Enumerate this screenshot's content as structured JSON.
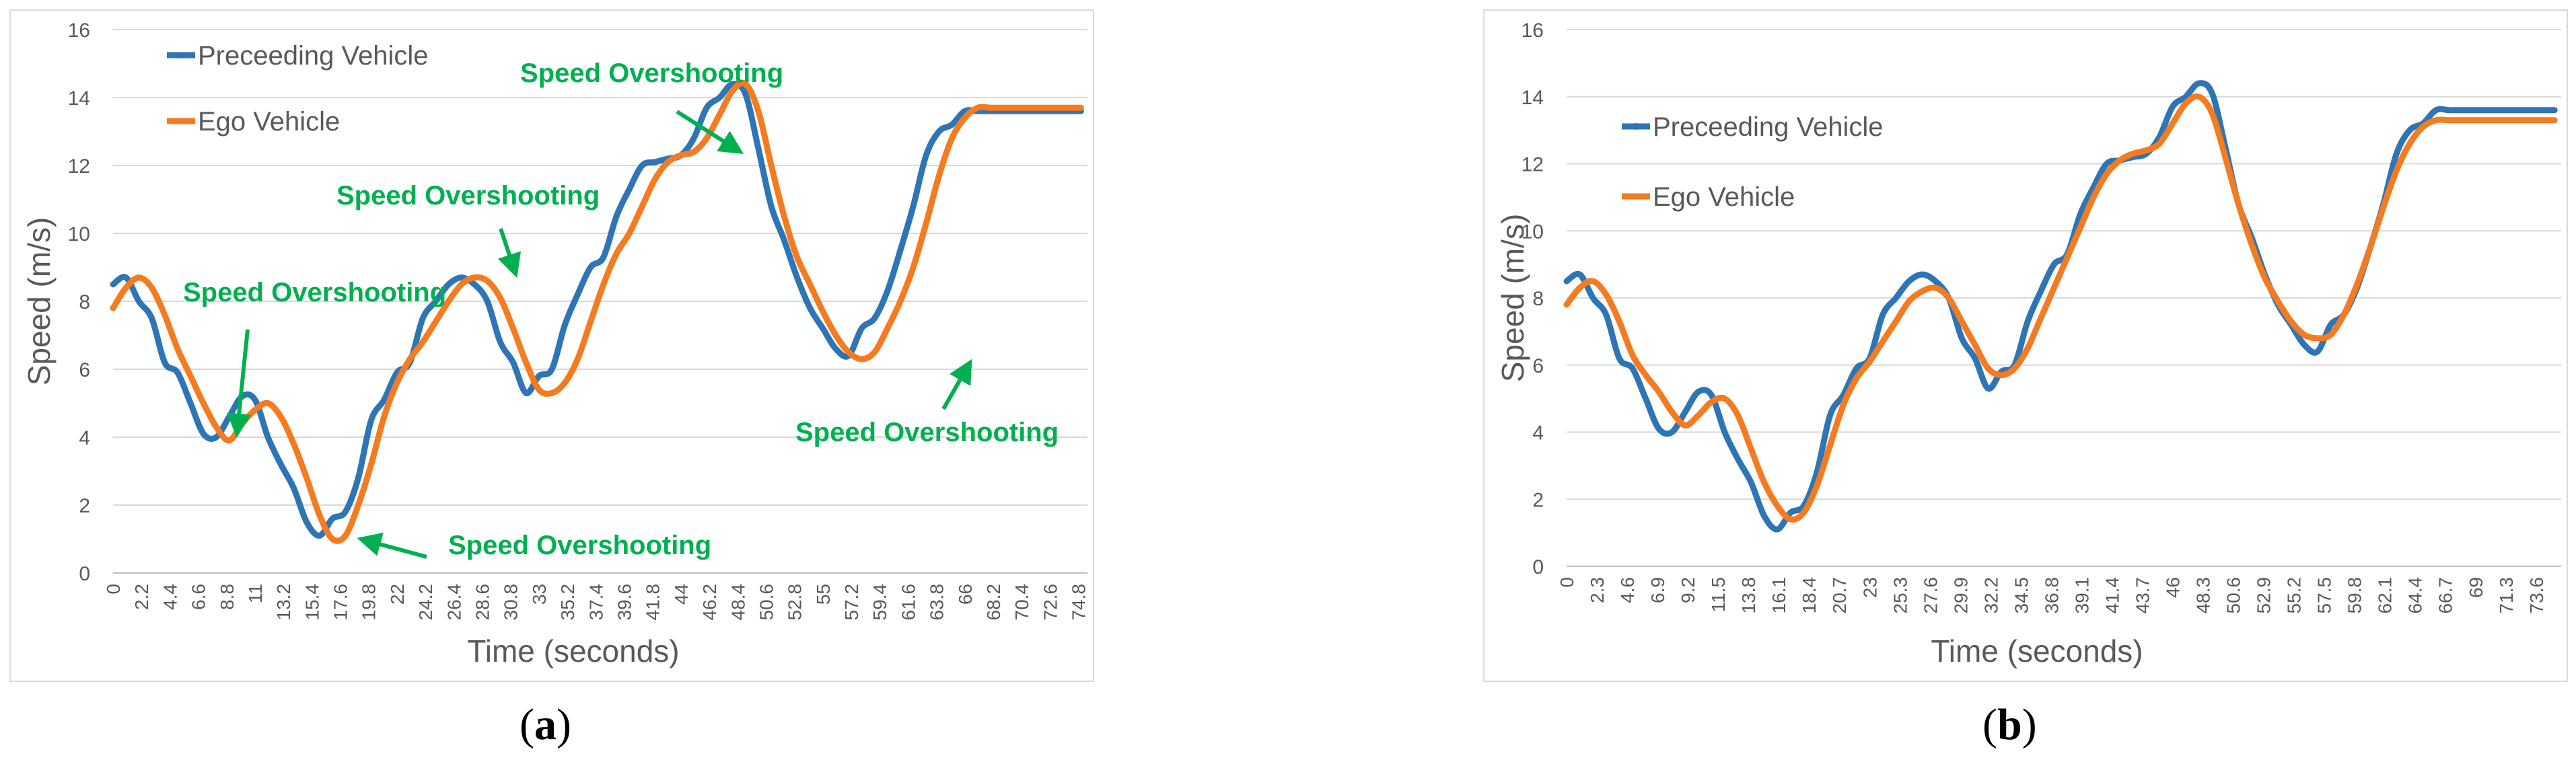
{
  "colors": {
    "preceding": "#2e75b6",
    "ego": "#f47b20",
    "annotation": "#00b050",
    "grid": "#d9d9d9",
    "text": "#595959"
  },
  "charts": [
    {
      "panel_label": {
        "open": "(",
        "letter": "a",
        "close": ")"
      },
      "chart_data": {
        "type": "line",
        "title": "",
        "xlabel": "Time (seconds)",
        "ylabel": "Speed (m/s)",
        "ylim": [
          0,
          16
        ],
        "yticks": [
          0,
          2,
          4,
          6,
          8,
          10,
          12,
          14,
          16
        ],
        "xlim": [
          0,
          75.5
        ],
        "xticks": [
          0,
          2.2,
          4.4,
          6.6,
          8.8,
          11,
          13.2,
          15.4,
          17.6,
          19.8,
          22,
          24.2,
          26.4,
          28.6,
          30.8,
          33,
          35.2,
          37.4,
          39.6,
          41.8,
          44,
          46.2,
          48.4,
          50.6,
          52.8,
          55,
          57.2,
          59.4,
          61.6,
          63.8,
          66,
          68.2,
          70.4,
          72.6,
          74.8
        ],
        "legend": [
          "Preceeding Vehicle",
          "Ego Vehicle"
        ],
        "legend_position": "top-left",
        "series": [
          {
            "name": "Preceeding Vehicle",
            "x": [
              0,
              1,
              2,
              3,
              4,
              5,
              6,
              7,
              8,
              9,
              10,
              11,
              12,
              13,
              14,
              15,
              16,
              17,
              18,
              19,
              20,
              21,
              22,
              23,
              24,
              25,
              26,
              27,
              28,
              29,
              30,
              31,
              32,
              33,
              34,
              35,
              36,
              37,
              38,
              39,
              40,
              41,
              42,
              43,
              44,
              45,
              46,
              47,
              48,
              49,
              50,
              51,
              52,
              53,
              54,
              55,
              56,
              57,
              58,
              59,
              60,
              61,
              62,
              63,
              64,
              65,
              66,
              67,
              68,
              69,
              70,
              71,
              72,
              73,
              74,
              75
            ],
            "values": [
              8.5,
              8.7,
              8.0,
              7.5,
              6.2,
              5.9,
              5.0,
              4.1,
              4.0,
              4.6,
              5.2,
              5.1,
              4.0,
              3.2,
              2.5,
              1.5,
              1.1,
              1.6,
              1.8,
              2.8,
              4.5,
              5.1,
              5.9,
              6.2,
              7.5,
              8.0,
              8.5,
              8.7,
              8.5,
              8.0,
              6.8,
              6.2,
              5.3,
              5.8,
              6.0,
              7.3,
              8.2,
              9.0,
              9.3,
              10.5,
              11.3,
              12.0,
              12.1,
              12.2,
              12.3,
              12.8,
              13.7,
              14.0,
              14.4,
              14.1,
              12.5,
              10.8,
              9.8,
              8.7,
              7.8,
              7.2,
              6.6,
              6.4,
              7.2,
              7.5,
              8.3,
              9.5,
              10.8,
              12.3,
              13.0,
              13.2,
              13.6,
              13.6,
              13.6,
              13.6,
              13.6,
              13.6,
              13.6,
              13.6,
              13.6,
              13.6
            ]
          },
          {
            "name": "Ego Vehicle",
            "x": [
              0,
              1,
              2,
              3,
              4,
              5,
              6,
              7,
              8,
              9,
              10,
              11,
              12,
              13,
              14,
              15,
              16,
              17,
              18,
              19,
              20,
              21,
              22,
              23,
              24,
              25,
              26,
              27,
              28,
              29,
              30,
              31,
              32,
              33,
              34,
              35,
              36,
              37,
              38,
              39,
              40,
              41,
              42,
              43,
              44,
              45,
              46,
              47,
              48,
              49,
              50,
              51,
              52,
              53,
              54,
              55,
              56,
              57,
              58,
              59,
              60,
              61,
              62,
              63,
              64,
              65,
              66,
              67,
              68,
              69,
              70,
              71,
              72,
              73,
              74,
              75
            ],
            "values": [
              7.8,
              8.4,
              8.7,
              8.4,
              7.6,
              6.6,
              5.8,
              5.0,
              4.3,
              3.9,
              4.4,
              4.8,
              5.0,
              4.6,
              3.8,
              2.8,
              1.7,
              1.0,
              1.1,
              2.0,
              3.2,
              4.6,
              5.6,
              6.3,
              6.8,
              7.4,
              8.0,
              8.5,
              8.7,
              8.6,
              8.1,
              7.2,
              6.2,
              5.4,
              5.3,
              5.6,
              6.3,
              7.4,
              8.5,
              9.4,
              10.0,
              10.8,
              11.6,
              12.1,
              12.3,
              12.4,
              12.8,
              13.5,
              14.2,
              14.4,
              13.6,
              12.0,
              10.5,
              9.3,
              8.5,
              7.7,
              7.0,
              6.5,
              6.3,
              6.5,
              7.2,
              8.0,
              9.0,
              10.3,
              11.7,
              12.8,
              13.4,
              13.7,
              13.7,
              13.7,
              13.7,
              13.7,
              13.7,
              13.7,
              13.7,
              13.7
            ]
          }
        ],
        "annotations": [
          {
            "text": "Speed Overshooting",
            "target": [
              9.6,
              4.1
            ],
            "anchor": "above"
          },
          {
            "text": "Speed Overshooting",
            "target": [
              19.2,
              1.0
            ],
            "anchor": "right"
          },
          {
            "text": "Speed Overshooting",
            "target": [
              31.2,
              8.8
            ],
            "anchor": "above"
          },
          {
            "text": "Speed Overshooting",
            "target": [
              48.6,
              12.4
            ],
            "anchor": "above-left"
          },
          {
            "text": "Speed Overshooting",
            "target": [
              66.4,
              6.2
            ],
            "anchor": "below"
          }
        ]
      }
    },
    {
      "panel_label": {
        "open": "(",
        "letter": "b",
        "close": ")"
      },
      "chart_data": {
        "type": "line",
        "title": "",
        "xlabel": "Time (seconds)",
        "ylabel": "Speed (m/s)",
        "ylim": [
          0,
          16
        ],
        "yticks": [
          0,
          2,
          4,
          6,
          8,
          10,
          12,
          14,
          16
        ],
        "xlim": [
          0,
          75.5
        ],
        "xticks": [
          0,
          2.3,
          4.6,
          6.9,
          9.2,
          11.5,
          13.8,
          16.1,
          18.4,
          20.7,
          23,
          25.3,
          27.6,
          29.9,
          32.2,
          34.5,
          36.8,
          39.1,
          41.4,
          43.7,
          46,
          48.3,
          50.6,
          52.9,
          55.2,
          57.5,
          59.8,
          62.1,
          64.4,
          66.7,
          69,
          71.3,
          73.6
        ],
        "legend": [
          "Preceeding Vehicle",
          "Ego Vehicle"
        ],
        "legend_position": "top-left",
        "series": [
          {
            "name": "Preceeding Vehicle",
            "x": [
              0,
              1,
              2,
              3,
              4,
              5,
              6,
              7,
              8,
              9,
              10,
              11,
              12,
              13,
              14,
              15,
              16,
              17,
              18,
              19,
              20,
              21,
              22,
              23,
              24,
              25,
              26,
              27,
              28,
              29,
              30,
              31,
              32,
              33,
              34,
              35,
              36,
              37,
              38,
              39,
              40,
              41,
              42,
              43,
              44,
              45,
              46,
              47,
              48,
              49,
              50,
              51,
              52,
              53,
              54,
              55,
              56,
              57,
              58,
              59,
              60,
              61,
              62,
              63,
              64,
              65,
              66,
              67,
              68,
              69,
              70,
              71,
              72,
              73,
              74,
              75
            ],
            "values": [
              8.5,
              8.7,
              8.0,
              7.5,
              6.2,
              5.9,
              5.0,
              4.1,
              4.0,
              4.6,
              5.2,
              5.1,
              4.0,
              3.2,
              2.5,
              1.5,
              1.1,
              1.6,
              1.8,
              2.8,
              4.5,
              5.1,
              5.9,
              6.2,
              7.5,
              8.0,
              8.5,
              8.7,
              8.5,
              8.0,
              6.8,
              6.2,
              5.3,
              5.8,
              6.0,
              7.3,
              8.2,
              9.0,
              9.3,
              10.5,
              11.3,
              12.0,
              12.1,
              12.2,
              12.3,
              12.8,
              13.7,
              14.0,
              14.4,
              14.1,
              12.5,
              10.8,
              9.8,
              8.7,
              7.8,
              7.2,
              6.6,
              6.4,
              7.2,
              7.5,
              8.3,
              9.5,
              10.8,
              12.3,
              13.0,
              13.2,
              13.6,
              13.6,
              13.6,
              13.6,
              13.6,
              13.6,
              13.6,
              13.6,
              13.6,
              13.6
            ]
          },
          {
            "name": "Ego Vehicle",
            "x": [
              0,
              1,
              2,
              3,
              4,
              5,
              6,
              7,
              8,
              9,
              10,
              11,
              12,
              13,
              14,
              15,
              16,
              17,
              18,
              19,
              20,
              21,
              22,
              23,
              24,
              25,
              26,
              27,
              28,
              29,
              30,
              31,
              32,
              33,
              34,
              35,
              36,
              37,
              38,
              39,
              40,
              41,
              42,
              43,
              44,
              45,
              46,
              47,
              48,
              49,
              50,
              51,
              52,
              53,
              54,
              55,
              56,
              57,
              58,
              59,
              60,
              61,
              62,
              63,
              64,
              65,
              66,
              67,
              68,
              69,
              70,
              71,
              72,
              73,
              74,
              75
            ],
            "values": [
              7.8,
              8.3,
              8.5,
              8.1,
              7.3,
              6.3,
              5.7,
              5.2,
              4.6,
              4.2,
              4.5,
              4.9,
              5.0,
              4.5,
              3.5,
              2.5,
              1.8,
              1.4,
              1.6,
              2.4,
              3.6,
              4.8,
              5.6,
              6.1,
              6.7,
              7.3,
              7.9,
              8.2,
              8.3,
              8.0,
              7.3,
              6.6,
              5.9,
              5.7,
              5.9,
              6.5,
              7.4,
              8.3,
              9.2,
              10.1,
              11.0,
              11.7,
              12.1,
              12.3,
              12.4,
              12.6,
              13.2,
              13.8,
              14.0,
              13.5,
              12.2,
              10.8,
              9.6,
              8.6,
              7.9,
              7.3,
              6.9,
              6.8,
              6.9,
              7.5,
              8.4,
              9.5,
              10.7,
              11.8,
              12.6,
              13.1,
              13.3,
              13.3,
              13.3,
              13.3,
              13.3,
              13.3,
              13.3,
              13.3,
              13.3,
              13.3
            ]
          }
        ],
        "annotations": []
      }
    }
  ]
}
